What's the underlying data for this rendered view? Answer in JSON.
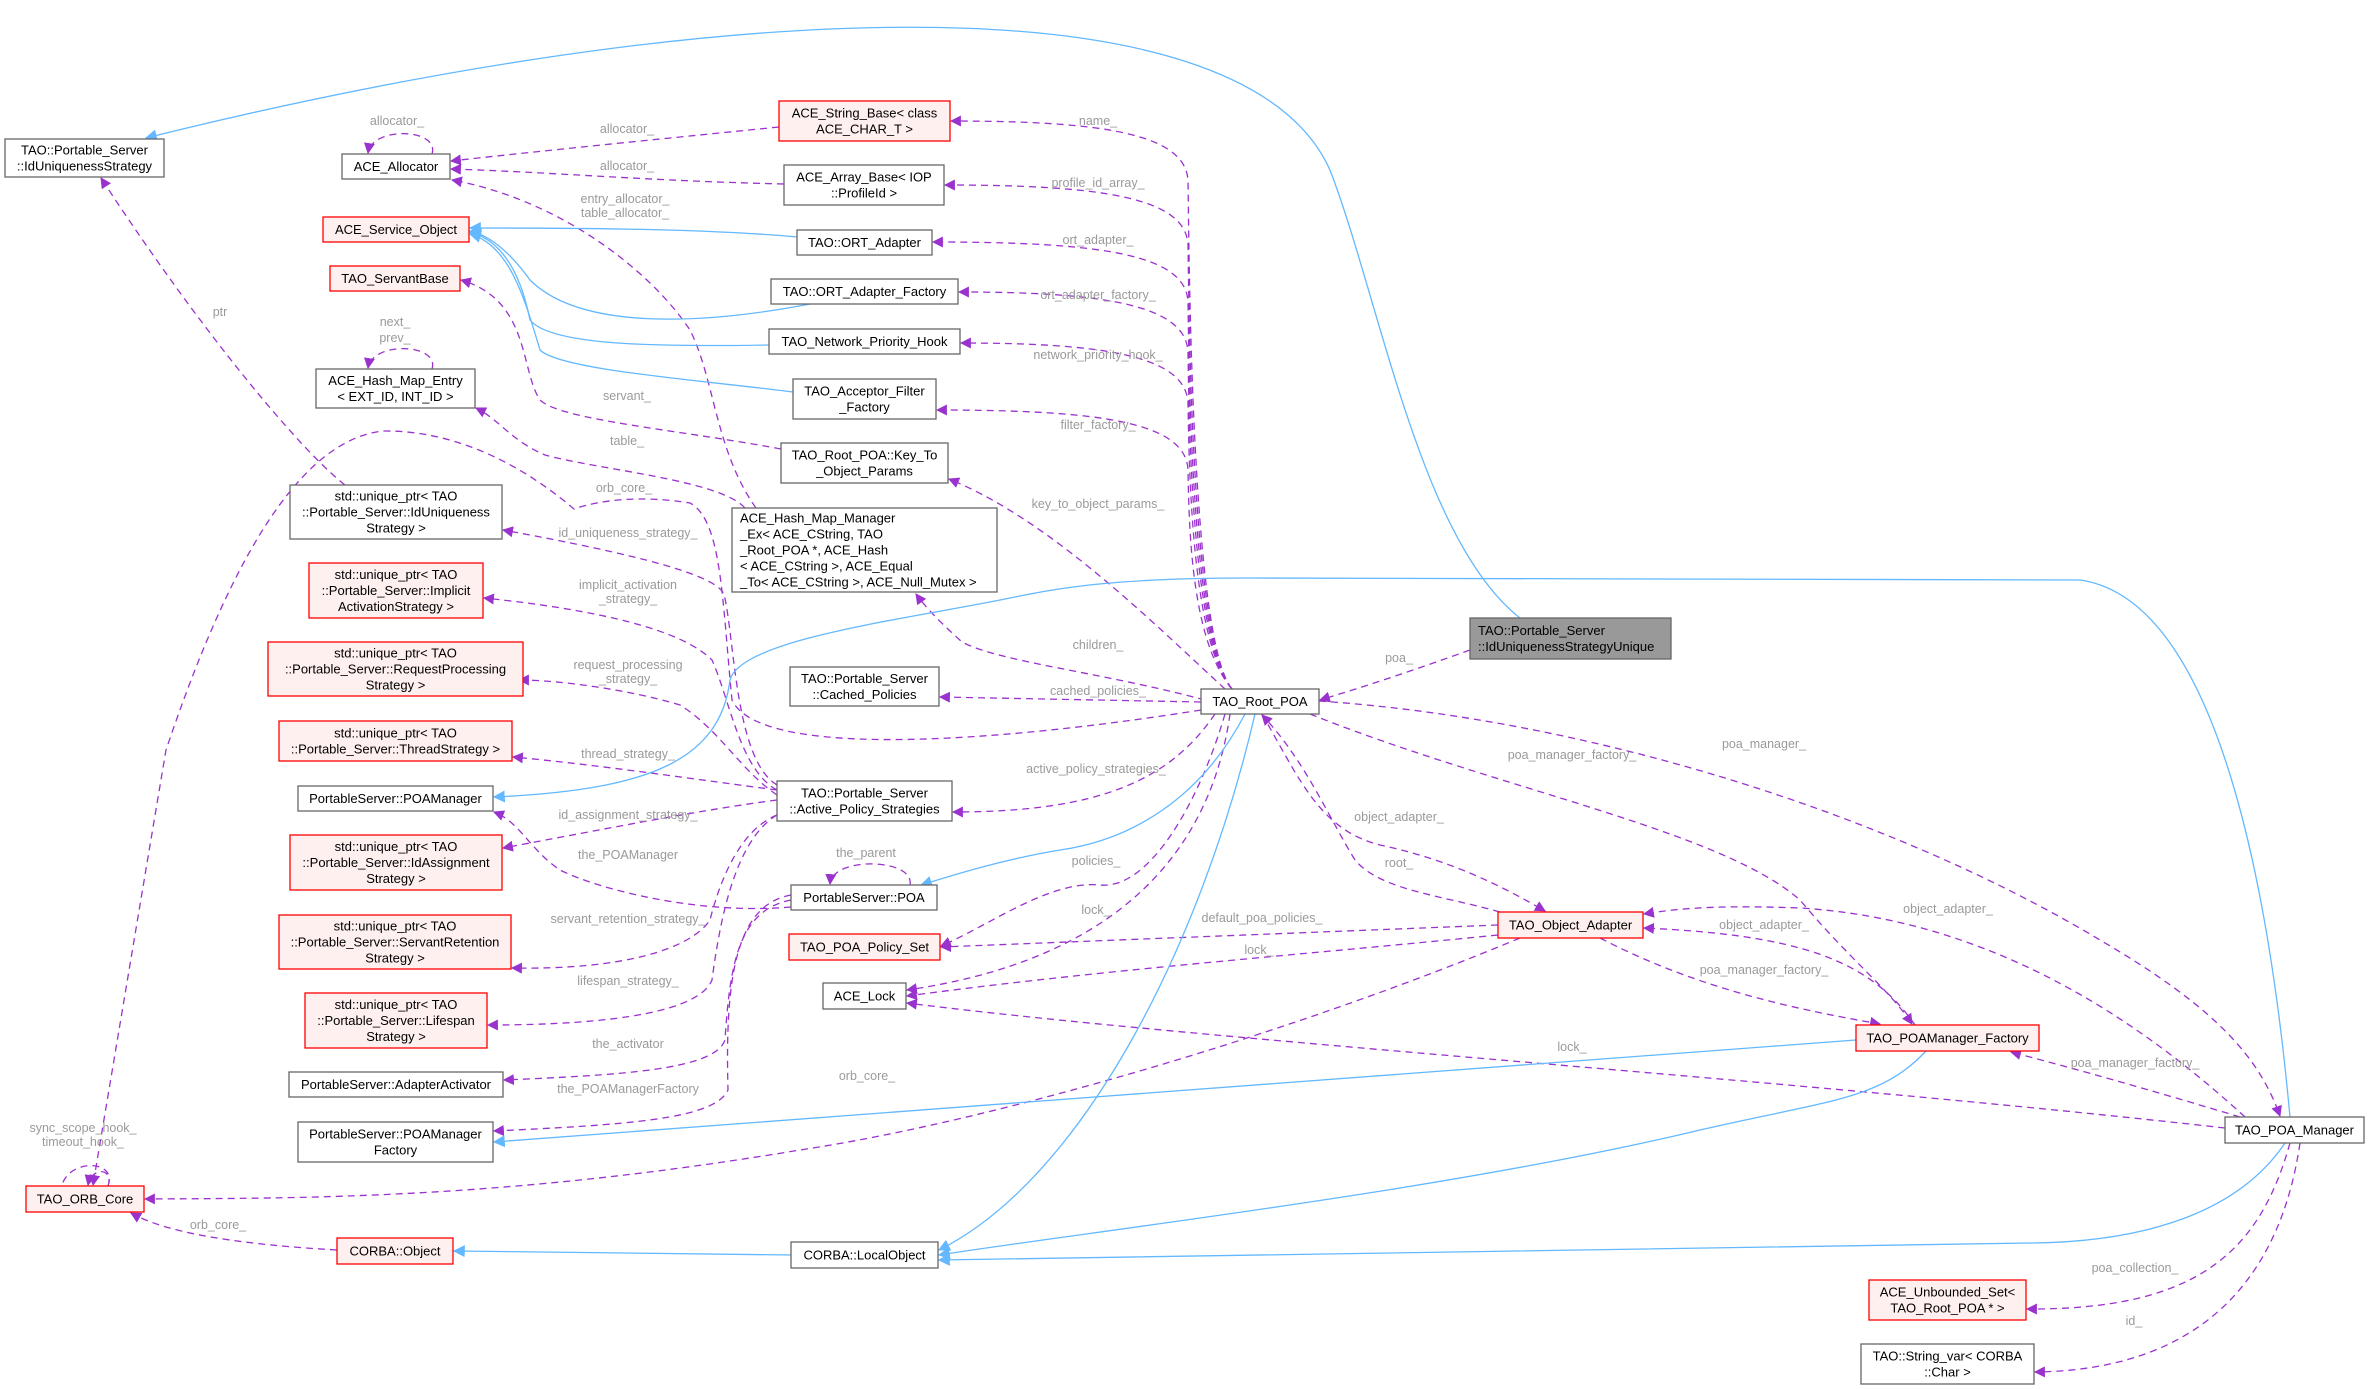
{
  "colors": {
    "usage_edge": "#9a32cd",
    "inherit_edge": "#63b8ff",
    "incomplete_border": "#ff0000",
    "focus_fill": "#999999",
    "edge_label": "#9a9a9a"
  },
  "nodes": [
    {
      "id": "IUS",
      "style": "normal",
      "lines": [
        "TAO::Portable_Server",
        "::IdUniquenessStrategy"
      ]
    },
    {
      "id": "ALLOC",
      "style": "normal",
      "lines": [
        "ACE_Allocator"
      ]
    },
    {
      "id": "SVC",
      "style": "red",
      "lines": [
        "ACE_Service_Object"
      ]
    },
    {
      "id": "SERVB",
      "style": "red",
      "lines": [
        "TAO_ServantBase"
      ]
    },
    {
      "id": "HME",
      "style": "normal",
      "lines": [
        "ACE_Hash_Map_Entry",
        "< EXT_ID, INT_ID >"
      ]
    },
    {
      "id": "UP_IU",
      "style": "normal",
      "lines": [
        "std::unique_ptr< TAO",
        "::Portable_Server::IdUniqueness",
        "Strategy >"
      ]
    },
    {
      "id": "UP_IA",
      "style": "red",
      "lines": [
        "std::unique_ptr< TAO",
        "::Portable_Server::Implicit",
        "ActivationStrategy >"
      ]
    },
    {
      "id": "UP_RP",
      "style": "red",
      "lines": [
        "std::unique_ptr< TAO",
        "::Portable_Server::RequestProcessing",
        "Strategy >"
      ]
    },
    {
      "id": "STRB",
      "style": "red",
      "lines": [
        "ACE_String_Base< class",
        "ACE_CHAR_T >"
      ]
    },
    {
      "id": "ARRB",
      "style": "normal",
      "lines": [
        "ACE_Array_Base< IOP",
        "::ProfileId >"
      ]
    },
    {
      "id": "ORT",
      "style": "normal",
      "lines": [
        "TAO::ORT_Adapter"
      ]
    },
    {
      "id": "ORTF",
      "style": "normal",
      "lines": [
        "TAO::ORT_Adapter_Factory"
      ]
    },
    {
      "id": "NPH",
      "style": "normal",
      "lines": [
        "TAO_Network_Priority_Hook"
      ]
    },
    {
      "id": "AFF",
      "style": "normal",
      "lines": [
        "TAO_Acceptor_Filter",
        "_Factory"
      ]
    },
    {
      "id": "KTOP",
      "style": "normal",
      "lines": [
        "TAO_Root_POA::Key_To",
        "_Object_Params"
      ]
    },
    {
      "id": "HMM",
      "style": "normal",
      "align": "left",
      "lines": [
        "ACE_Hash_Map_Manager",
        "_Ex< ACE_CString, TAO",
        "_Root_POA *, ACE_Hash",
        "< ACE_CString >, ACE_Equal",
        "_To< ACE_CString >, ACE_Null_Mutex >"
      ]
    },
    {
      "id": "CACHED",
      "style": "normal",
      "lines": [
        "TAO::Portable_Server",
        "::Cached_Policies"
      ]
    },
    {
      "id": "UP_TS",
      "style": "red",
      "lines": [
        "std::unique_ptr< TAO",
        "::Portable_Server::ThreadStrategy >"
      ]
    },
    {
      "id": "POAM",
      "style": "normal",
      "lines": [
        "PortableServer::POAManager"
      ]
    },
    {
      "id": "UP_IDA",
      "style": "red",
      "lines": [
        "std::unique_ptr< TAO",
        "::Portable_Server::IdAssignment",
        "Strategy >"
      ]
    },
    {
      "id": "UP_SR",
      "style": "red",
      "lines": [
        "std::unique_ptr< TAO",
        "::Portable_Server::ServantRetention",
        "Strategy >"
      ]
    },
    {
      "id": "UP_LS",
      "style": "red",
      "lines": [
        "std::unique_ptr< TAO",
        "::Portable_Server::Lifespan",
        "Strategy >"
      ]
    },
    {
      "id": "AA",
      "style": "normal",
      "lines": [
        "PortableServer::AdapterActivator"
      ]
    },
    {
      "id": "POAMF",
      "style": "normal",
      "lines": [
        "PortableServer::POAManager",
        "Factory"
      ]
    },
    {
      "id": "ORB",
      "style": "red",
      "lines": [
        "TAO_ORB_Core"
      ]
    },
    {
      "id": "COBJ",
      "style": "red",
      "lines": [
        "CORBA::Object"
      ]
    },
    {
      "id": "LOBJ",
      "style": "normal",
      "lines": [
        "CORBA::LocalObject"
      ]
    },
    {
      "id": "APS",
      "style": "normal",
      "lines": [
        "TAO::Portable_Server",
        "::Active_Policy_Strategies"
      ]
    },
    {
      "id": "POA",
      "style": "normal",
      "lines": [
        "PortableServer::POA"
      ]
    },
    {
      "id": "PPS",
      "style": "red",
      "lines": [
        "TAO_POA_Policy_Set"
      ]
    },
    {
      "id": "LOCK",
      "style": "normal",
      "lines": [
        "ACE_Lock"
      ]
    },
    {
      "id": "IUSU",
      "style": "focus",
      "align": "left",
      "lines": [
        "TAO::Portable_Server",
        "::IdUniquenessStrategyUnique"
      ]
    },
    {
      "id": "ROOT",
      "style": "normal",
      "lines": [
        "TAO_Root_POA"
      ]
    },
    {
      "id": "OA",
      "style": "red",
      "lines": [
        "TAO_Object_Adapter"
      ]
    },
    {
      "id": "POAMFAC",
      "style": "red",
      "lines": [
        "TAO_POAManager_Factory"
      ]
    },
    {
      "id": "POAMGR",
      "style": "normal",
      "lines": [
        "TAO_POA_Manager"
      ]
    },
    {
      "id": "UNB",
      "style": "red",
      "lines": [
        "ACE_Unbounded_Set<",
        "TAO_Root_POA * >"
      ]
    },
    {
      "id": "SVAR",
      "style": "normal",
      "lines": [
        "TAO::String_var< CORBA",
        "::Char >"
      ]
    }
  ],
  "edges": [
    {
      "from": "ALLOC",
      "to": "ALLOC",
      "kind": "usage",
      "label": [
        "allocator_"
      ]
    },
    {
      "from": "STRB",
      "to": "ALLOC",
      "kind": "usage",
      "label": [
        "allocator_"
      ]
    },
    {
      "from": "ARRB",
      "to": "ALLOC",
      "kind": "usage",
      "label": [
        "allocator_"
      ]
    },
    {
      "from": "HMM",
      "to": "ALLOC",
      "kind": "usage",
      "label": [
        "entry_allocator_",
        "table_allocator_"
      ]
    },
    {
      "from": "ROOT",
      "to": "STRB",
      "kind": "usage",
      "label": [
        "name_"
      ]
    },
    {
      "from": "ROOT",
      "to": "ARRB",
      "kind": "usage",
      "label": [
        "profile_id_array_"
      ]
    },
    {
      "from": "ROOT",
      "to": "ORT",
      "kind": "usage",
      "label": [
        "ort_adapter_"
      ]
    },
    {
      "from": "ROOT",
      "to": "ORTF",
      "kind": "usage",
      "label": [
        "ort_adapter_factory_"
      ]
    },
    {
      "from": "ROOT",
      "to": "NPH",
      "kind": "usage",
      "label": [
        "network_priority_hook_"
      ]
    },
    {
      "from": "ROOT",
      "to": "AFF",
      "kind": "usage",
      "label": [
        "filter_factory_"
      ]
    },
    {
      "from": "ROOT",
      "to": "KTOP",
      "kind": "usage",
      "label": [
        "key_to_object_params_"
      ]
    },
    {
      "from": "ROOT",
      "to": "HMM",
      "kind": "usage",
      "label": [
        "children_"
      ]
    },
    {
      "from": "ROOT",
      "to": "CACHED",
      "kind": "usage",
      "label": [
        "cached_policies_"
      ]
    },
    {
      "from": "ROOT",
      "to": "APS",
      "kind": "usage",
      "label": [
        "active_policy_strategies_"
      ]
    },
    {
      "from": "ROOT",
      "to": "PPS",
      "kind": "usage",
      "label": [
        "policies_"
      ]
    },
    {
      "from": "ROOT",
      "to": "LOCK",
      "kind": "usage",
      "label": [
        "lock_"
      ]
    },
    {
      "from": "ROOT",
      "to": "ORB",
      "kind": "usage",
      "label": [
        "orb_core_"
      ]
    },
    {
      "from": "ROOT",
      "to": "OA",
      "kind": "usage",
      "label": [
        "object_adapter_"
      ]
    },
    {
      "from": "OA",
      "to": "ROOT",
      "kind": "usage",
      "label": [
        "root_"
      ]
    },
    {
      "from": "ROOT",
      "to": "POAMFAC",
      "kind": "usage",
      "label": [
        "poa_manager_factory_"
      ]
    },
    {
      "from": "ROOT",
      "to": "POAMGR",
      "kind": "usage",
      "label": [
        "poa_manager_"
      ]
    },
    {
      "from": "IUSU",
      "to": "ROOT",
      "kind": "usage",
      "label": [
        "poa_"
      ]
    },
    {
      "from": "UP_IU",
      "to": "IUS",
      "kind": "usage",
      "label": [
        "ptr"
      ]
    },
    {
      "from": "KTOP",
      "to": "SERVB",
      "kind": "usage",
      "label": [
        "servant_"
      ]
    },
    {
      "from": "HMM",
      "to": "HME",
      "kind": "usage",
      "label": [
        "table_"
      ]
    },
    {
      "from": "HME",
      "to": "HME",
      "kind": "usage",
      "label": [
        "next_",
        "prev_"
      ]
    },
    {
      "from": "APS",
      "to": "UP_IU",
      "kind": "usage",
      "label": [
        "id_uniqueness_strategy_"
      ]
    },
    {
      "from": "APS",
      "to": "UP_IA",
      "kind": "usage",
      "label": [
        "implicit_activation",
        "_strategy_"
      ]
    },
    {
      "from": "APS",
      "to": "UP_RP",
      "kind": "usage",
      "label": [
        "request_processing",
        "_strategy_"
      ]
    },
    {
      "from": "APS",
      "to": "UP_TS",
      "kind": "usage",
      "label": [
        "thread_strategy_"
      ]
    },
    {
      "from": "APS",
      "to": "UP_IDA",
      "kind": "usage",
      "label": [
        "id_assignment_strategy_"
      ]
    },
    {
      "from": "APS",
      "to": "UP_SR",
      "kind": "usage",
      "label": [
        "servant_retention_strategy_"
      ]
    },
    {
      "from": "APS",
      "to": "UP_LS",
      "kind": "usage",
      "label": [
        "lifespan_strategy_"
      ]
    },
    {
      "from": "POA",
      "to": "POA",
      "kind": "usage",
      "label": [
        "the_parent"
      ]
    },
    {
      "from": "POA",
      "to": "POAM",
      "kind": "usage",
      "label": [
        "the_POAManager"
      ]
    },
    {
      "from": "POA",
      "to": "AA",
      "kind": "usage",
      "label": [
        "the_activator"
      ]
    },
    {
      "from": "POA",
      "to": "POAMF",
      "kind": "usage",
      "label": [
        "the_POAManagerFactory"
      ]
    },
    {
      "from": "ORB",
      "to": "ORB",
      "kind": "usage",
      "label": [
        "sync_scope_hook_",
        "timeout_hook_"
      ]
    },
    {
      "from": "COBJ",
      "to": "ORB",
      "kind": "usage",
      "label": [
        "orb_core_"
      ]
    },
    {
      "from": "OA",
      "to": "ORB",
      "kind": "usage",
      "label": [
        "orb_core_"
      ]
    },
    {
      "from": "OA",
      "to": "PPS",
      "kind": "usage",
      "label": [
        "default_poa_policies_"
      ]
    },
    {
      "from": "OA",
      "to": "LOCK",
      "kind": "usage",
      "label": [
        "lock_"
      ]
    },
    {
      "from": "OA",
      "to": "POAMFAC",
      "kind": "usage",
      "label": [
        "poa_manager_factory_"
      ]
    },
    {
      "from": "POAMFAC",
      "to": "OA",
      "kind": "usage",
      "label": [
        "object_adapter_"
      ]
    },
    {
      "from": "POAMGR",
      "to": "OA",
      "kind": "usage",
      "label": [
        "object_adapter_"
      ]
    },
    {
      "from": "POAMGR",
      "to": "POAMFAC",
      "kind": "usage",
      "label": [
        "poa_manager_factory_"
      ]
    },
    {
      "from": "POAMGR",
      "to": "LOCK",
      "kind": "usage",
      "label": [
        "lock_"
      ]
    },
    {
      "from": "POAMGR",
      "to": "UNB",
      "kind": "usage",
      "label": [
        "poa_collection_"
      ]
    },
    {
      "from": "POAMGR",
      "to": "SVAR",
      "kind": "usage",
      "label": [
        "id_"
      ]
    },
    {
      "from": "IUSU",
      "to": "IUS",
      "kind": "inherit",
      "label": []
    },
    {
      "from": "ORT",
      "to": "SVC",
      "kind": "inherit",
      "label": []
    },
    {
      "from": "ORTF",
      "to": "SVC",
      "kind": "inherit",
      "label": []
    },
    {
      "from": "NPH",
      "to": "SVC",
      "kind": "inherit",
      "label": []
    },
    {
      "from": "AFF",
      "to": "SVC",
      "kind": "inherit",
      "label": []
    },
    {
      "from": "ROOT",
      "to": "POA",
      "kind": "inherit",
      "label": []
    },
    {
      "from": "ROOT",
      "to": "LOBJ",
      "kind": "inherit",
      "label": []
    },
    {
      "from": "POAMFAC",
      "to": "LOBJ",
      "kind": "inherit",
      "label": []
    },
    {
      "from": "POAMGR",
      "to": "LOBJ",
      "kind": "inherit",
      "label": []
    },
    {
      "from": "POAMFAC",
      "to": "POAMF",
      "kind": "inherit",
      "label": []
    },
    {
      "from": "POAMGR",
      "to": "POAM",
      "kind": "inherit",
      "label": []
    },
    {
      "from": "LOBJ",
      "to": "COBJ",
      "kind": "inherit",
      "label": []
    }
  ]
}
